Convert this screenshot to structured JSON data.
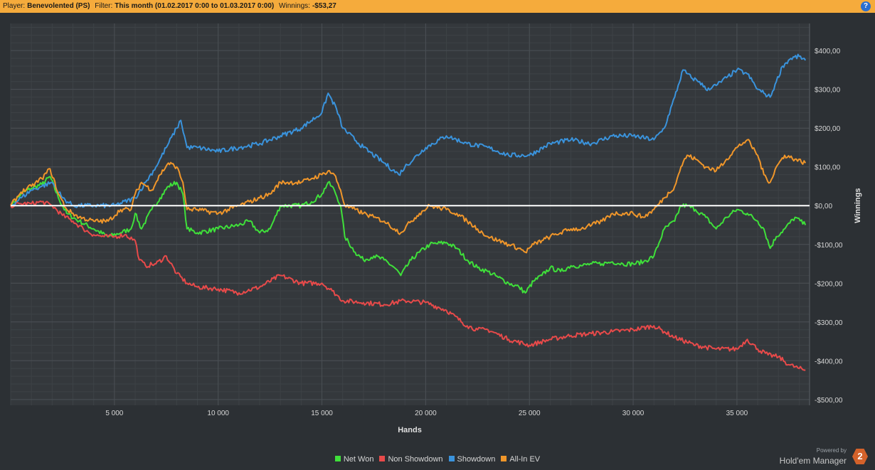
{
  "header": {
    "player_label": "Player:",
    "player_value": "Benevolented (PS)",
    "filter_label": "Filter:",
    "filter_value": "This month (01.02.2017 0:00 to 01.03.2017 0:00)",
    "winnings_label": "Winnings:",
    "winnings_value": "-$53,27",
    "help_glyph": "?"
  },
  "brand": {
    "powered": "Powered by",
    "name": "Hold'em Manager",
    "logo_glyph": "2"
  },
  "chart_data": {
    "type": "line",
    "xlabel": "Hands",
    "ylabel": "Winnings",
    "x_ticks": [
      5000,
      10000,
      15000,
      20000,
      25000,
      30000,
      35000
    ],
    "x_tick_labels": [
      "5 000",
      "10 000",
      "15 000",
      "20 000",
      "25 000",
      "30 000",
      "35 000"
    ],
    "y_ticks": [
      400,
      300,
      200,
      100,
      0,
      -100,
      -200,
      -300,
      -400,
      -500
    ],
    "y_tick_labels": [
      "$400,00",
      "$300,00",
      "$200,00",
      "$100,00",
      "$0,00",
      "-$100,00",
      "-$200,00",
      "-$300,00",
      "-$400,00",
      "-$500,00"
    ],
    "xlim": [
      0,
      38500
    ],
    "ylim": [
      -515,
      470
    ],
    "grid": true,
    "legend_position": "bottom",
    "zero_line_color": "#ffffff",
    "series": [
      {
        "name": "Net Won",
        "color": "#3fe03a",
        "x": [
          0,
          500,
          1000,
          1500,
          1900,
          2300,
          2700,
          3300,
          4000,
          4700,
          5300,
          5800,
          6000,
          6300,
          6800,
          7200,
          7600,
          8000,
          8300,
          8500,
          9000,
          10000,
          11000,
          11500,
          12000,
          12500,
          13000,
          14000,
          14500,
          15000,
          15300,
          15600,
          15900,
          16100,
          16600,
          17000,
          17500,
          18000,
          18500,
          18800,
          19300,
          19700,
          20200,
          21000,
          21500,
          22000,
          22500,
          23000,
          23500,
          24000,
          24500,
          24800,
          25200,
          25600,
          26000,
          26500,
          27000,
          27500,
          28000,
          28500,
          29000,
          29500,
          30000,
          30500,
          31000,
          31500,
          32000,
          32300,
          32600,
          33000,
          33500,
          34000,
          34500,
          35000,
          35500,
          36000,
          36300,
          36600,
          36900,
          37300,
          37800,
          38300
        ],
        "y": [
          0,
          30,
          45,
          55,
          75,
          20,
          -20,
          -40,
          -60,
          -80,
          -70,
          -60,
          -20,
          -60,
          -10,
          20,
          50,
          60,
          30,
          -60,
          -70,
          -60,
          -50,
          -40,
          -70,
          -60,
          0,
          0,
          10,
          30,
          60,
          40,
          0,
          -80,
          -120,
          -140,
          -130,
          -140,
          -160,
          -180,
          -140,
          -120,
          -100,
          -95,
          -110,
          -140,
          -160,
          -170,
          -185,
          -200,
          -210,
          -225,
          -195,
          -180,
          -160,
          -170,
          -155,
          -155,
          -150,
          -150,
          -145,
          -150,
          -150,
          -145,
          -130,
          -60,
          -40,
          0,
          0,
          -10,
          -30,
          -60,
          -30,
          -10,
          -20,
          -40,
          -60,
          -110,
          -80,
          -60,
          -30,
          -50
        ]
      },
      {
        "name": "Non Showdown",
        "color": "#e84a4a",
        "x": [
          0,
          500,
          1000,
          1500,
          2000,
          2500,
          3000,
          3500,
          4000,
          4500,
          5000,
          5500,
          6000,
          6200,
          6500,
          7000,
          7500,
          8000,
          8500,
          9000,
          10000,
          11000,
          12000,
          13000,
          14000,
          15000,
          15500,
          16000,
          17000,
          18000,
          19000,
          20000,
          21000,
          22000,
          22500,
          23000,
          24000,
          25000,
          26000,
          27000,
          28000,
          29000,
          30000,
          31000,
          31500,
          32000,
          33000,
          34000,
          35000,
          35500,
          36000,
          36500,
          37000,
          37500,
          38000,
          38300
        ],
        "y": [
          0,
          5,
          5,
          10,
          0,
          -25,
          -40,
          -60,
          -75,
          -80,
          -80,
          -75,
          -90,
          -140,
          -155,
          -150,
          -130,
          -175,
          -200,
          -210,
          -215,
          -225,
          -210,
          -180,
          -200,
          -200,
          -220,
          -245,
          -250,
          -255,
          -245,
          -250,
          -270,
          -310,
          -320,
          -320,
          -345,
          -360,
          -345,
          -335,
          -330,
          -325,
          -320,
          -310,
          -325,
          -340,
          -360,
          -370,
          -370,
          -345,
          -370,
          -385,
          -390,
          -410,
          -420,
          -425
        ]
      },
      {
        "name": "Showdown",
        "color": "#3a93dc",
        "x": [
          0,
          500,
          1000,
          1500,
          2000,
          2500,
          3000,
          4000,
          5000,
          6000,
          6500,
          7000,
          7500,
          8000,
          8200,
          8500,
          9000,
          10000,
          11000,
          12000,
          13000,
          14000,
          15000,
          15300,
          15700,
          16000,
          17000,
          18000,
          18700,
          19000,
          20000,
          21000,
          22000,
          23000,
          24000,
          25000,
          26000,
          27000,
          28000,
          29000,
          30000,
          31000,
          31500,
          32000,
          32400,
          32800,
          33200,
          33500,
          34000,
          34500,
          35000,
          35500,
          36000,
          36300,
          36600,
          36900,
          37200,
          37600,
          38000,
          38300
        ],
        "y": [
          0,
          20,
          40,
          50,
          60,
          20,
          0,
          0,
          0,
          20,
          60,
          100,
          150,
          200,
          220,
          150,
          150,
          140,
          150,
          160,
          180,
          200,
          240,
          290,
          250,
          200,
          150,
          110,
          80,
          100,
          150,
          180,
          160,
          150,
          130,
          130,
          160,
          170,
          160,
          180,
          180,
          170,
          200,
          280,
          350,
          330,
          320,
          300,
          310,
          330,
          350,
          340,
          300,
          290,
          280,
          320,
          360,
          380,
          385,
          375
        ]
      },
      {
        "name": "All-In EV",
        "color": "#f0962a",
        "x": [
          0,
          500,
          1000,
          1500,
          1900,
          2300,
          2700,
          3300,
          4000,
          4700,
          5300,
          5800,
          6000,
          6300,
          6800,
          7200,
          7600,
          8000,
          8300,
          8500,
          9000,
          10000,
          11000,
          11500,
          12000,
          12500,
          13000,
          14000,
          14500,
          15000,
          15300,
          15600,
          15900,
          16100,
          16600,
          17000,
          17500,
          18000,
          18500,
          18800,
          19300,
          19700,
          20200,
          21000,
          21500,
          22000,
          22500,
          23000,
          23500,
          24000,
          24500,
          24800,
          25200,
          25600,
          26000,
          26500,
          27000,
          27500,
          28000,
          28500,
          29000,
          29500,
          30000,
          30500,
          31000,
          31500,
          32000,
          32300,
          32600,
          33000,
          33500,
          34000,
          34500,
          35000,
          35500,
          36000,
          36300,
          36600,
          36900,
          37300,
          37800,
          38300
        ],
        "y": [
          0,
          35,
          50,
          70,
          95,
          30,
          -10,
          -30,
          -40,
          -40,
          -10,
          -10,
          30,
          60,
          40,
          80,
          110,
          100,
          60,
          -10,
          -10,
          -20,
          0,
          10,
          20,
          30,
          60,
          60,
          70,
          80,
          90,
          80,
          40,
          0,
          -10,
          -20,
          -30,
          -40,
          -60,
          -70,
          -40,
          -20,
          0,
          -10,
          -20,
          -40,
          -60,
          -80,
          -90,
          -100,
          -110,
          -120,
          -100,
          -90,
          -80,
          -70,
          -60,
          -60,
          -50,
          -40,
          -20,
          -20,
          -20,
          -30,
          -10,
          20,
          50,
          100,
          130,
          120,
          100,
          90,
          120,
          150,
          170,
          130,
          80,
          60,
          100,
          130,
          120,
          110
        ]
      }
    ]
  }
}
